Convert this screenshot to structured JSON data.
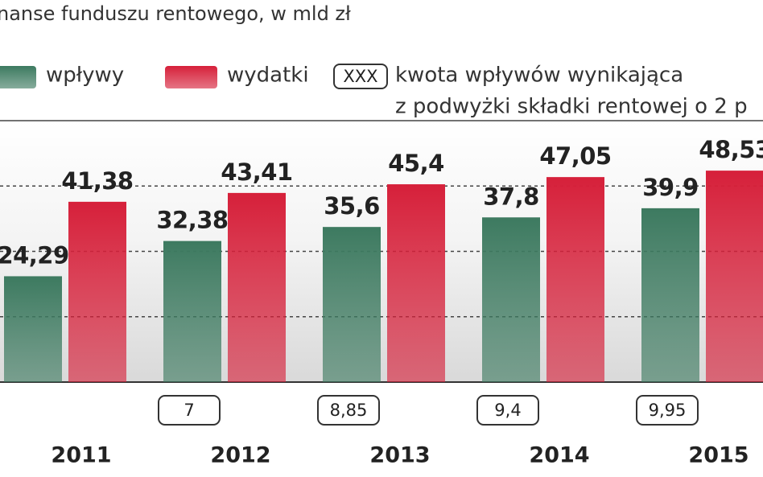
{
  "chart_data": {
    "type": "bar",
    "title": "nanse funduszu rentowego, w mld zł",
    "categories": [
      "2011",
      "2012",
      "2013",
      "2014",
      "2015"
    ],
    "series": [
      {
        "name": "wpływy",
        "color": "#3d7a60",
        "values": [
          24.29,
          32.38,
          35.6,
          37.8,
          39.9
        ],
        "value_labels": [
          "24,29",
          "32,38",
          "35,6",
          "37,8",
          "39,9"
        ]
      },
      {
        "name": "wydatki",
        "color": "#d6203a",
        "values": [
          41.38,
          43.41,
          45.4,
          47.05,
          48.53
        ],
        "value_labels": [
          "41,38",
          "43,41",
          "45,4",
          "47,05",
          "48,53"
        ]
      }
    ],
    "increase_legend": {
      "symbol": "XXX",
      "text": [
        "kwota wpływów wynikająca",
        "z podwyżki składki rentowej o 2 p"
      ]
    },
    "increase": {
      "values": [
        null,
        7,
        8.85,
        9.4,
        9.95
      ],
      "value_labels": [
        null,
        "7",
        "8,85",
        "9,4",
        "9,95"
      ]
    },
    "ylim": [
      0,
      60
    ],
    "yticks": [
      0,
      15,
      30,
      45,
      60
    ],
    "grid": true
  }
}
